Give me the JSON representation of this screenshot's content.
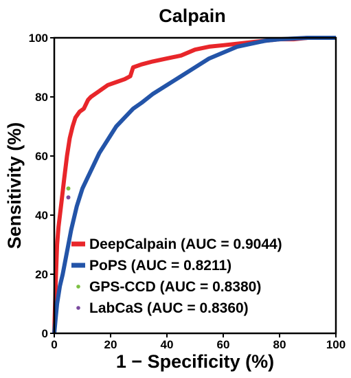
{
  "chart_data": {
    "type": "line",
    "title": "Calpain",
    "xlabel": "1 − Specificity (%)",
    "ylabel": "Sensitivity (%)",
    "xlim": [
      0,
      100
    ],
    "ylim": [
      0,
      100
    ],
    "xticks": [
      0,
      20,
      40,
      60,
      80,
      100
    ],
    "yticks": [
      0,
      20,
      40,
      60,
      80,
      100
    ],
    "grid": false,
    "legend_position": "bottom-right",
    "series": [
      {
        "name": "DeepCalpain (AUC = 0.9044)",
        "kind": "line",
        "color": "#e8262a",
        "points": [
          [
            0,
            0
          ],
          [
            0.3,
            10
          ],
          [
            0.6,
            20
          ],
          [
            1,
            30
          ],
          [
            1.5,
            36
          ],
          [
            2.5,
            44
          ],
          [
            3.5,
            52
          ],
          [
            4.5,
            60
          ],
          [
            5.5,
            66
          ],
          [
            6.5,
            70
          ],
          [
            7.5,
            73
          ],
          [
            9,
            75
          ],
          [
            10.5,
            76
          ],
          [
            12,
            79
          ],
          [
            13,
            80
          ],
          [
            16,
            82
          ],
          [
            19,
            84
          ],
          [
            22,
            85
          ],
          [
            25,
            86
          ],
          [
            27,
            87
          ],
          [
            28,
            90
          ],
          [
            31,
            91
          ],
          [
            35,
            92
          ],
          [
            40,
            93
          ],
          [
            45,
            94
          ],
          [
            50,
            96
          ],
          [
            55,
            97
          ],
          [
            60,
            97.5
          ],
          [
            65,
            98
          ],
          [
            70,
            98.5
          ],
          [
            75,
            99
          ],
          [
            80,
            99.5
          ],
          [
            85,
            99.5
          ],
          [
            90,
            100
          ],
          [
            100,
            100
          ]
        ]
      },
      {
        "name": "PoPS (AUC = 0.8211)",
        "kind": "line",
        "color": "#2354a8",
        "points": [
          [
            0,
            0
          ],
          [
            0.5,
            5
          ],
          [
            1,
            10
          ],
          [
            2,
            16
          ],
          [
            3,
            20
          ],
          [
            4,
            25
          ],
          [
            5,
            30
          ],
          [
            6,
            35
          ],
          [
            7,
            39
          ],
          [
            8,
            43
          ],
          [
            9,
            46
          ],
          [
            10,
            49
          ],
          [
            12,
            53
          ],
          [
            14,
            57
          ],
          [
            16,
            61
          ],
          [
            18,
            64
          ],
          [
            20,
            67
          ],
          [
            22,
            70
          ],
          [
            25,
            73
          ],
          [
            28,
            76
          ],
          [
            31,
            78
          ],
          [
            35,
            81
          ],
          [
            40,
            84
          ],
          [
            45,
            87
          ],
          [
            50,
            90
          ],
          [
            55,
            93
          ],
          [
            60,
            95
          ],
          [
            65,
            97
          ],
          [
            70,
            98
          ],
          [
            75,
            99
          ],
          [
            80,
            99.5
          ],
          [
            90,
            100
          ],
          [
            100,
            100
          ]
        ]
      },
      {
        "name": "GPS-CCD (AUC = 0.8380)",
        "kind": "point",
        "color": "#7cc043",
        "points": [
          [
            5,
            49
          ]
        ]
      },
      {
        "name": "LabCaS (AUC = 0.8360)",
        "kind": "point",
        "color": "#7a4a9e",
        "points": [
          [
            5,
            46
          ]
        ]
      }
    ]
  }
}
